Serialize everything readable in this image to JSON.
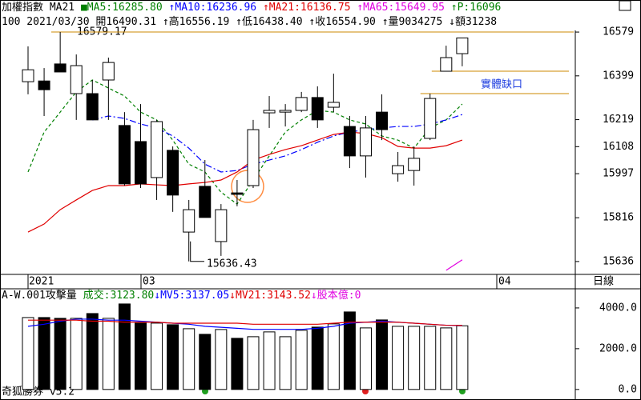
{
  "header": {
    "line1": [
      {
        "text": "加權指數 MA21 ",
        "color": "#000000"
      },
      {
        "text": "■MA5:16285.80 ",
        "color": "#008000"
      },
      {
        "text": "↑MA10:16236.96 ",
        "color": "#0000ff"
      },
      {
        "text": "↑MA21:16136.75 ",
        "color": "#e00000"
      },
      {
        "text": "↑MA65:15649.95 ",
        "color": "#e000e0"
      },
      {
        "text": "↑P:16096",
        "color": "#008000"
      }
    ],
    "line2": [
      {
        "text": "100 2021/03/30 ",
        "color": "#000000"
      },
      {
        "text": "開16490.31 ",
        "color": "#000000"
      },
      {
        "text": "↑高16556.19 ",
        "color": "#000000"
      },
      {
        "text": "↑低16438.40 ",
        "color": "#000000"
      },
      {
        "text": "↑收16554.90 ",
        "color": "#000000"
      },
      {
        "text": "↑量9034275 ",
        "color": "#000000"
      },
      {
        "text": "↓額31238",
        "color": "#000000"
      }
    ],
    "volume_line": [
      {
        "text": "A-W.001攻擊量 ",
        "color": "#000000"
      },
      {
        "text": "成交:3123.80",
        "color": "#008000"
      },
      {
        "text": "↓MV5:3137.05",
        "color": "#0000ff"
      },
      {
        "text": "↓MV21:3143.52",
        "color": "#e00000"
      },
      {
        "text": "↓股本億:0",
        "color": "#e000e0"
      }
    ],
    "footer": "奇狐勝券 v5.2"
  },
  "chart_data": [
    {
      "type": "candlestick",
      "open": [
        16375,
        16378,
        16448,
        16326,
        16326,
        16382,
        16195,
        16129,
        15981,
        16093,
        15757,
        15945,
        15718,
        15918,
        15948,
        16247,
        16250,
        16257,
        16310,
        16270,
        16191,
        16070,
        16250,
        15997,
        16010,
        16142,
        16418,
        16490.31
      ],
      "high": [
        16520,
        16431,
        16579.17,
        16487,
        16382,
        16474,
        16250,
        16283,
        16218,
        16109,
        15889,
        16053,
        15872,
        15971,
        16218,
        16316,
        16283,
        16333,
        16356,
        16408,
        16234,
        16234,
        16323,
        16086,
        16109,
        16326,
        16523,
        16556.19
      ],
      "low": [
        16323,
        16234,
        16415,
        16218,
        16218,
        16218,
        15948,
        15938,
        15889,
        15840,
        15636.43,
        15817,
        15659,
        15863,
        15938,
        16185,
        16191,
        16250,
        16185,
        16250,
        16020,
        15981,
        16135,
        15964,
        15948,
        16135,
        16418,
        16438.4
      ],
      "close": [
        16424,
        16342,
        16415,
        16441,
        16218,
        16454,
        15955,
        15955,
        16211,
        15909,
        15849,
        15817,
        15849,
        15912,
        16178,
        16257,
        16257,
        16310,
        16218,
        16290,
        16070,
        16185,
        16178,
        16030,
        16060,
        16306,
        16474,
        16554.9
      ],
      "series": [
        {
          "color": "#008000",
          "line_style": "dashed",
          "values": [
            16004,
            16168,
            16250,
            16333,
            16382,
            16349,
            16316,
            16250,
            16218,
            16135,
            16036,
            16004,
            15921,
            15872,
            15971,
            16070,
            16168,
            16218,
            16257,
            16250,
            16218,
            16201,
            16152,
            16135,
            16102,
            16185,
            16218,
            16283
          ]
        },
        {
          "color": "#0000ff",
          "line_style": "dashdot",
          "values": [
            null,
            null,
            null,
            null,
            16218,
            16234,
            16224,
            16201,
            16185,
            16152,
            16102,
            16036,
            16004,
            16010,
            16036,
            16053,
            16070,
            16096,
            16126,
            16152,
            16168,
            16178,
            16185,
            16191,
            16191,
            16201,
            16218,
            16240
          ]
        },
        {
          "color": "#e00000",
          "line_style": "solid",
          "values": [
            15757,
            15790,
            15849,
            15889,
            15928,
            15948,
            15948,
            15955,
            15951,
            15948,
            15955,
            15961,
            15971,
            16004,
            16053,
            16076,
            16096,
            16112,
            16135,
            16158,
            16168,
            16162,
            16145,
            16109,
            16102,
            16102,
            16112,
            16135
          ]
        },
        {
          "color": "#e000e0",
          "line_style": "solid",
          "values": [
            null,
            null,
            null,
            null,
            null,
            null,
            null,
            null,
            null,
            null,
            null,
            null,
            null,
            null,
            null,
            null,
            null,
            null,
            null,
            null,
            null,
            null,
            null,
            null,
            null,
            null,
            15600,
            15643
          ]
        }
      ],
      "ylim": [
        15583,
        16645
      ],
      "yticks": [
        16579,
        16399,
        16219,
        16108,
        15997,
        15816,
        15636
      ],
      "x_labels": [
        "2021",
        "03",
        "04"
      ],
      "period_label": "日線",
      "max_label": "16579.17",
      "min_label": "15636.43",
      "gap_label": "實體缺口",
      "annotation_color": "#cc8800"
    },
    {
      "type": "bar",
      "values": [
        3529,
        3529,
        3490,
        3490,
        3725,
        3490,
        4196,
        3255,
        3255,
        3176,
        2980,
        2706,
        2941,
        2510,
        2588,
        2824,
        2588,
        2902,
        3059,
        3216,
        3804,
        3020,
        3412,
        3098,
        3098,
        3098,
        3020,
        3123.8
      ],
      "series": [
        {
          "color": "#0000ff",
          "values": [
            3100,
            3200,
            3350,
            3450,
            3450,
            3400,
            3400,
            3350,
            3300,
            3250,
            3200,
            3100,
            3050,
            3000,
            2950,
            2950,
            2950,
            2950,
            3000,
            3100,
            3250,
            3300,
            3350,
            3300,
            3250,
            3200,
            3150,
            3137.05
          ]
        },
        {
          "color": "#e00000",
          "values": [
            3400,
            3400,
            3400,
            3400,
            3350,
            3350,
            3300,
            3300,
            3300,
            3250,
            3250,
            3250,
            3250,
            3250,
            3200,
            3200,
            3200,
            3200,
            3200,
            3250,
            3300,
            3300,
            3300,
            3300,
            3250,
            3200,
            3150,
            3143.52
          ]
        }
      ],
      "ylim": [
        -400,
        4900
      ],
      "yticks": [
        {
          "value": 4000,
          "label": "4000.0"
        },
        {
          "value": 2000,
          "label": "2000.0"
        },
        {
          "value": 0,
          "label": "0.0"
        }
      ]
    }
  ]
}
